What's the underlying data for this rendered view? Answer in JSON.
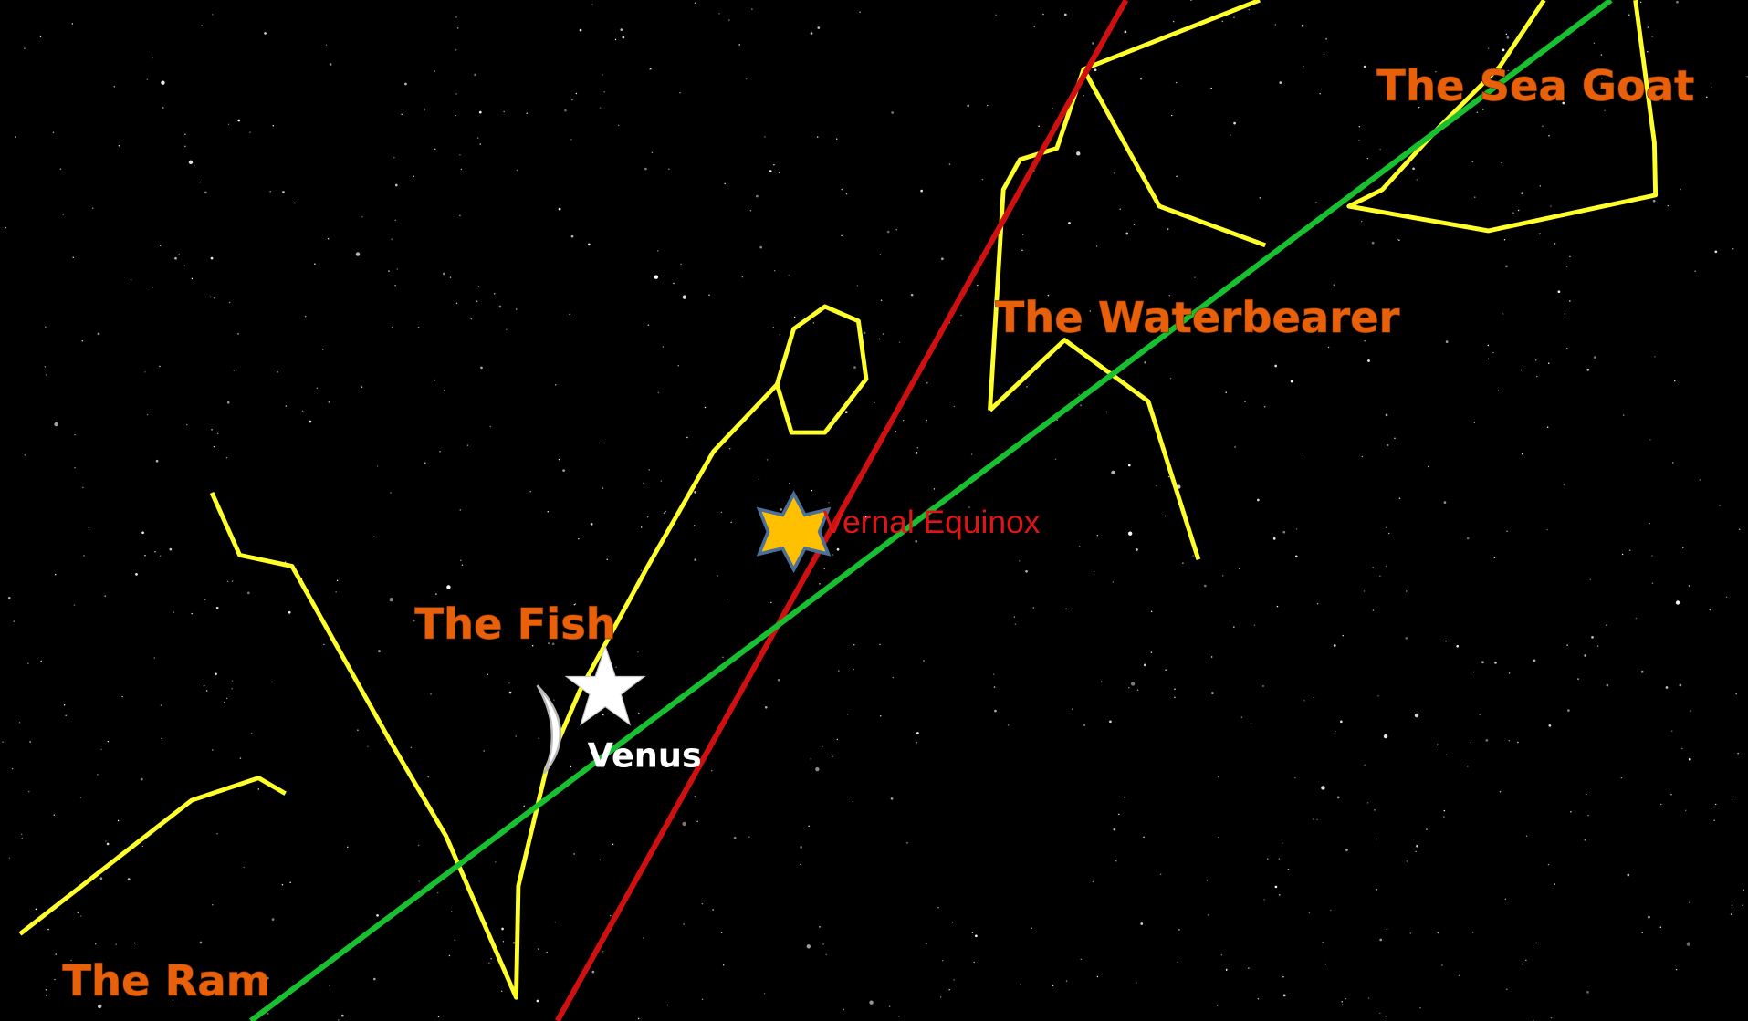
{
  "labels": {
    "sea_goat": "The Sea Goat",
    "waterbearer": "The Waterbearer",
    "vernal_equinox": "Vernal Equinox",
    "fish": "The Fish",
    "venus": "Venus",
    "ram": "The Ram"
  }
}
